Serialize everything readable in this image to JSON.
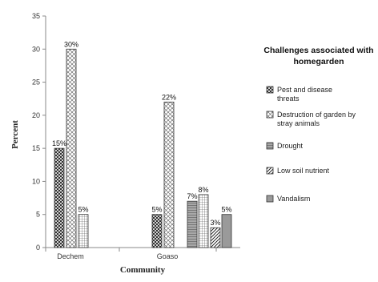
{
  "chart_data": {
    "type": "bar",
    "categories": [
      "Dechem",
      "Goaso"
    ],
    "xlabel": "Community",
    "ylabel": "Percent",
    "ylim": [
      0,
      35
    ],
    "yticks": [
      "0",
      "5",
      "10",
      "15",
      "20",
      "25",
      "30",
      "35"
    ],
    "grid": false,
    "legend_position": "right",
    "legend_title": "Challenges associated with homegarden",
    "series": [
      {
        "name": "Pest and  disease threats",
        "values": [
          15,
          5
        ],
        "labels": [
          "15%",
          "5%"
        ],
        "pattern": "cross-dots",
        "color": "#ffffff"
      },
      {
        "name": "Destruction of garden by stray animals",
        "values": [
          30,
          22
        ],
        "labels": [
          "30%",
          "22%"
        ],
        "pattern": "cross-hatch",
        "color": "#ffffff"
      },
      {
        "name": "Drought",
        "values": [
          5,
          7
        ],
        "labels": [
          "5%",
          "7%"
        ],
        "pattern": "horizontal-lines",
        "color": "#9a9a9a"
      },
      {
        "name": "Low soil nutrient",
        "values": [
          null,
          3
        ],
        "labels": [
          "",
          "3%"
        ],
        "pattern": "diagonal",
        "color": "#ffffff"
      },
      {
        "name": "Vandalism",
        "values": [
          null,
          5
        ],
        "labels": [
          "",
          "5%"
        ],
        "pattern": "solid",
        "color": "#9a9a9a"
      }
    ],
    "extra_bars": [
      {
        "category": "Goaso",
        "value": 8,
        "label": "8%",
        "pattern": "grid"
      }
    ]
  }
}
